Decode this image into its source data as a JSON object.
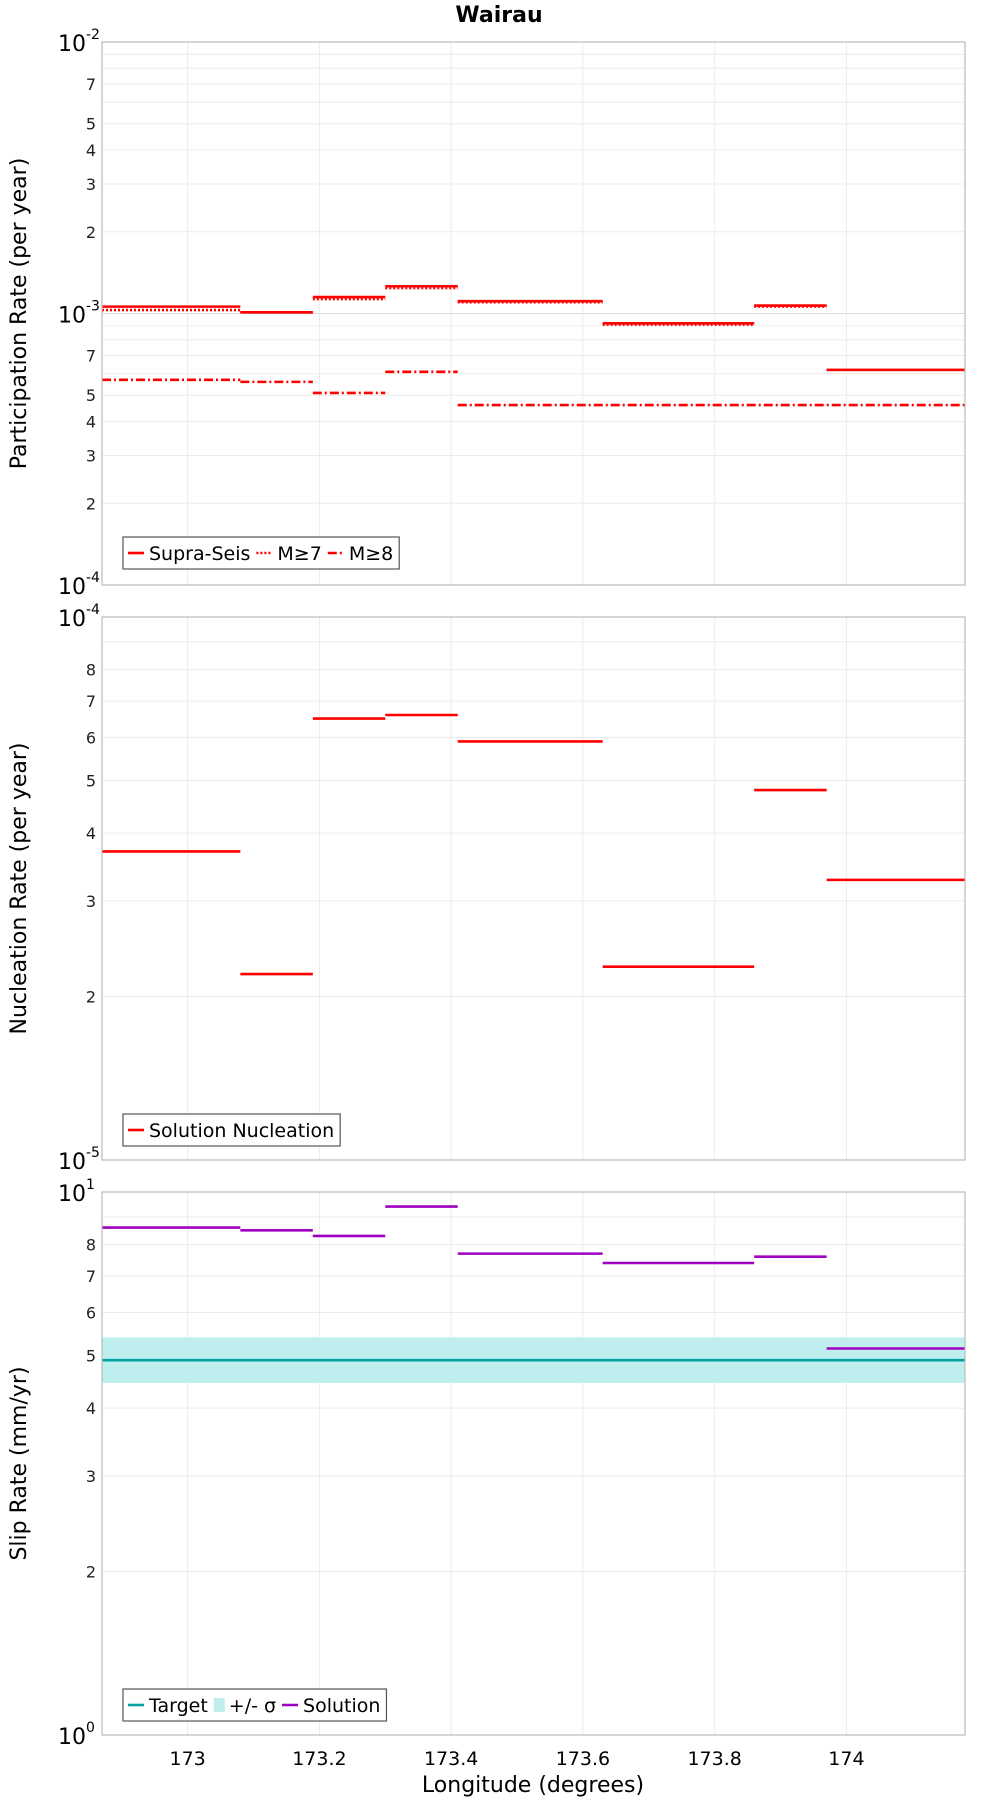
{
  "chart_data": [
    {
      "type": "line",
      "title": "Wairau",
      "ylabel": "Participation Rate (per year)",
      "yscale": "log",
      "ylim": [
        0.0001,
        0.01
      ],
      "y_major_ticks": [
        {
          "value": 0.01,
          "base": "10",
          "exp": "-2"
        },
        {
          "value": 0.001,
          "base": "10",
          "exp": "-3"
        },
        {
          "value": 0.0001,
          "base": "10",
          "exp": "-4"
        }
      ],
      "y_minor_ticks": [
        {
          "value": 0.007,
          "label": "7"
        },
        {
          "value": 0.005,
          "label": "5"
        },
        {
          "value": 0.004,
          "label": "4"
        },
        {
          "value": 0.003,
          "label": "3"
        },
        {
          "value": 0.002,
          "label": "2"
        },
        {
          "value": 0.0007,
          "label": "7"
        },
        {
          "value": 0.0005,
          "label": "5"
        },
        {
          "value": 0.0004,
          "label": "4"
        },
        {
          "value": 0.0003,
          "label": "3"
        },
        {
          "value": 0.0002,
          "label": "2"
        }
      ],
      "legend": {
        "position": "bottom-left",
        "items": [
          {
            "label": "Supra-Seis",
            "style": "solid",
            "color": "#ff0000"
          },
          {
            "label": "M≥7",
            "style": "dotted",
            "color": "#ff0000"
          },
          {
            "label": "M≥8",
            "style": "dashdot",
            "color": "#ff0000"
          }
        ]
      },
      "series": [
        {
          "name": "Supra-Seis",
          "color": "#ff0000",
          "style": "solid",
          "segments": [
            [
              172.87,
              173.08,
              0.00106
            ],
            [
              173.08,
              173.19,
              0.00101
            ],
            [
              173.19,
              173.3,
              0.00115
            ],
            [
              173.3,
              173.41,
              0.00126
            ],
            [
              173.41,
              173.63,
              0.00111
            ],
            [
              173.63,
              173.86,
              0.00092
            ],
            [
              173.86,
              173.97,
              0.00107
            ],
            [
              173.97,
              174.18,
              0.00062
            ]
          ]
        },
        {
          "name": "M≥7",
          "color": "#ff0000",
          "style": "dotted",
          "segments": [
            [
              172.87,
              173.08,
              0.00103
            ],
            [
              173.08,
              173.19,
              0.00101
            ],
            [
              173.19,
              173.3,
              0.00113
            ],
            [
              173.3,
              173.41,
              0.00124
            ],
            [
              173.41,
              173.63,
              0.0011
            ],
            [
              173.63,
              173.86,
              0.00091
            ],
            [
              173.86,
              173.97,
              0.00106
            ],
            [
              173.97,
              174.18,
              0.00062
            ]
          ]
        },
        {
          "name": "M≥8",
          "color": "#ff0000",
          "style": "dashdot",
          "segments": [
            [
              172.87,
              173.08,
              0.00057
            ],
            [
              173.08,
              173.19,
              0.00056
            ],
            [
              173.19,
              173.3,
              0.00051
            ],
            [
              173.3,
              173.41,
              0.00061
            ],
            [
              173.41,
              174.18,
              0.00046
            ]
          ]
        }
      ]
    },
    {
      "type": "line",
      "ylabel": "Nucleation Rate (per year)",
      "yscale": "log",
      "ylim": [
        1e-05,
        0.0001
      ],
      "y_major_ticks": [
        {
          "value": 0.0001,
          "base": "10",
          "exp": "-4"
        },
        {
          "value": 1e-05,
          "base": "10",
          "exp": "-5"
        }
      ],
      "y_minor_ticks": [
        {
          "value": 8e-05,
          "label": "8"
        },
        {
          "value": 7e-05,
          "label": "7"
        },
        {
          "value": 6e-05,
          "label": "6"
        },
        {
          "value": 5e-05,
          "label": "5"
        },
        {
          "value": 4e-05,
          "label": "4"
        },
        {
          "value": 3e-05,
          "label": "3"
        },
        {
          "value": 2e-05,
          "label": "2"
        }
      ],
      "legend": {
        "position": "bottom-left",
        "items": [
          {
            "label": "Solution Nucleation",
            "style": "solid",
            "color": "#ff0000"
          }
        ]
      },
      "series": [
        {
          "name": "Solution Nucleation",
          "color": "#ff0000",
          "style": "solid",
          "segments": [
            [
              172.87,
              173.08,
              3.7e-05
            ],
            [
              173.08,
              173.19,
              2.2e-05
            ],
            [
              173.19,
              173.3,
              6.5e-05
            ],
            [
              173.3,
              173.41,
              6.6e-05
            ],
            [
              173.41,
              173.63,
              5.9e-05
            ],
            [
              173.63,
              173.86,
              2.27e-05
            ],
            [
              173.86,
              173.97,
              4.8e-05
            ],
            [
              173.97,
              174.18,
              3.28e-05
            ]
          ]
        }
      ]
    },
    {
      "type": "line",
      "xlabel": "Longitude (degrees)",
      "ylabel": "Slip Rate (mm/yr)",
      "yscale": "log",
      "ylim": [
        1,
        10
      ],
      "xlim": [
        172.87,
        174.18
      ],
      "x_ticks": [
        {
          "value": 173,
          "label": "173"
        },
        {
          "value": 173.2,
          "label": "173.2"
        },
        {
          "value": 173.4,
          "label": "173.4"
        },
        {
          "value": 173.6,
          "label": "173.6"
        },
        {
          "value": 173.8,
          "label": "173.8"
        },
        {
          "value": 174,
          "label": "174"
        }
      ],
      "y_major_ticks": [
        {
          "value": 10,
          "base": "10",
          "exp": "1"
        },
        {
          "value": 1,
          "base": "10",
          "exp": "0"
        }
      ],
      "y_minor_ticks": [
        {
          "value": 8,
          "label": "8"
        },
        {
          "value": 7,
          "label": "7"
        },
        {
          "value": 6,
          "label": "6"
        },
        {
          "value": 5,
          "label": "5"
        },
        {
          "value": 4,
          "label": "4"
        },
        {
          "value": 3,
          "label": "3"
        },
        {
          "value": 2,
          "label": "2"
        }
      ],
      "legend": {
        "position": "bottom-left",
        "items": [
          {
            "label": "Target",
            "style": "solid",
            "color": "#00a0a0"
          },
          {
            "label": "+/- σ",
            "style": "band",
            "color": "#bfeeee"
          },
          {
            "label": "Solution",
            "style": "solid",
            "color": "#a000c0"
          }
        ]
      },
      "band": {
        "name": "+/- σ",
        "color": "#bfeeee",
        "low": 4.45,
        "high": 5.4
      },
      "series": [
        {
          "name": "Target",
          "color": "#00a0a0",
          "style": "solid",
          "segments": [
            [
              172.87,
              174.18,
              4.9
            ]
          ]
        },
        {
          "name": "Solution",
          "color": "#a000c0",
          "style": "solid",
          "segments": [
            [
              172.87,
              173.08,
              8.6
            ],
            [
              173.08,
              173.19,
              8.5
            ],
            [
              173.19,
              173.3,
              8.3
            ],
            [
              173.3,
              173.41,
              9.4
            ],
            [
              173.41,
              173.63,
              7.7
            ],
            [
              173.63,
              173.86,
              7.4
            ],
            [
              173.86,
              173.97,
              7.6
            ],
            [
              173.97,
              174.18,
              5.15
            ]
          ]
        }
      ]
    }
  ]
}
